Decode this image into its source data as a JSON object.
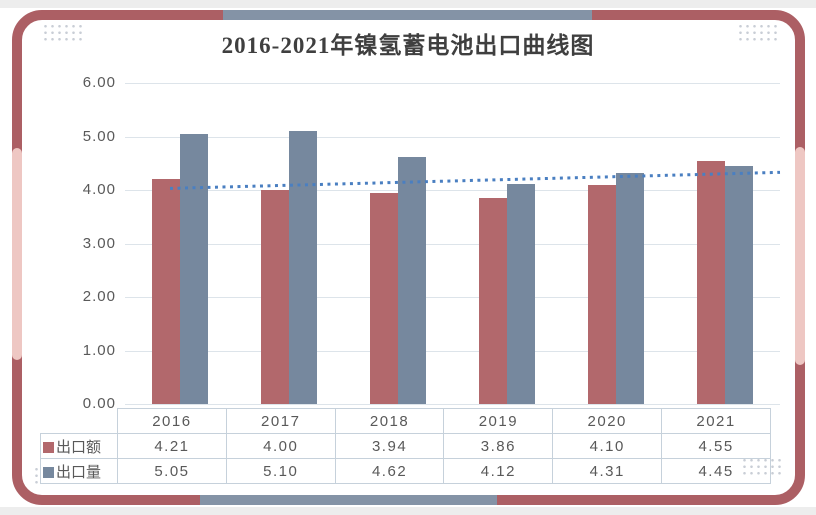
{
  "frame": {
    "border_color": "#ac5f64",
    "pink_accent_color": "#eec7c3",
    "gray_accent_color": "#8493a6",
    "dot_pattern_color": "#c9ced6"
  },
  "colors": {
    "export_value_bar": "#b2686c",
    "export_volume_bar": "#76889e",
    "trendline": "#4a7fc1",
    "gridline": "#dde4ea",
    "table_border": "#c6d1db",
    "text": "#595959",
    "title_text": "#3f3f3f"
  },
  "chart_data": {
    "type": "bar",
    "title": "2016-2021年镍氢蓄电池出口曲线图",
    "categories": [
      "2016",
      "2017",
      "2018",
      "2019",
      "2020",
      "2021"
    ],
    "series": [
      {
        "name": "出口额",
        "color": "#b2686c",
        "values": [
          4.21,
          4.0,
          3.94,
          3.86,
          4.1,
          4.55
        ]
      },
      {
        "name": "出口量",
        "color": "#76889e",
        "values": [
          5.05,
          5.1,
          4.62,
          4.12,
          4.31,
          4.45
        ]
      }
    ],
    "trendline": {
      "type": "linear",
      "style": "dotted",
      "color": "#4a7fc1",
      "start_value": 4.03,
      "end_value": 4.33
    },
    "y_axis": {
      "min": 0,
      "max": 6,
      "step": 1,
      "tick_labels": [
        "0.00",
        "1.00",
        "2.00",
        "3.00",
        "4.00",
        "5.00",
        "6.00"
      ]
    },
    "ylim": [
      0,
      6
    ],
    "grid": true,
    "legend_position": "data-table-row-labels",
    "has_data_table": true
  }
}
